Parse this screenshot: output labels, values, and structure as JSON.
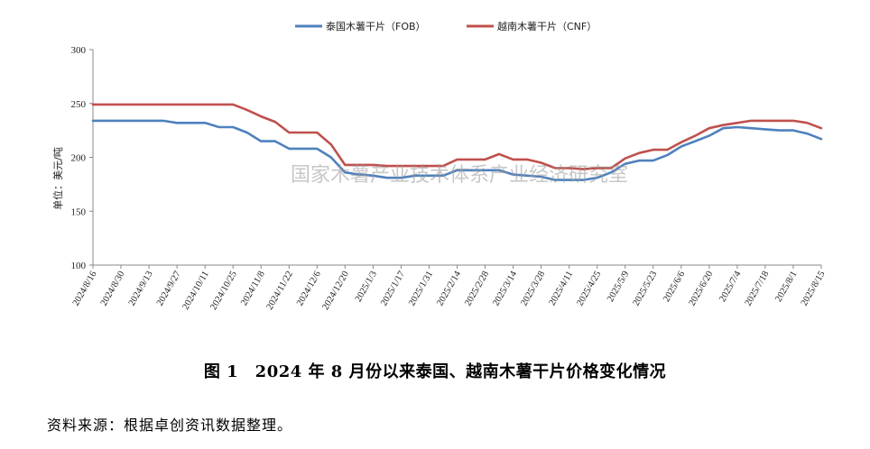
{
  "chart_data": {
    "type": "line",
    "title": "",
    "xlabel": "",
    "ylabel": "单位：美元/吨",
    "ylim": [
      100,
      300
    ],
    "yticks": [
      100,
      150,
      200,
      250,
      300
    ],
    "grid": false,
    "legend_position": "top-center",
    "x_tick_labels": [
      "2024/8/16",
      "2024/8/30",
      "2024/9/13",
      "2024/9/27",
      "2024/10/11",
      "2024/10/25",
      "2024/11/8",
      "2024/11/22",
      "2024/12/6",
      "2024/12/20",
      "2025/1/3",
      "2025/1/17",
      "2025/1/31",
      "2025/2/14",
      "2025/2/28",
      "2025/3/14",
      "2025/3/28",
      "2025/4/11",
      "2025/4/25",
      "2025/5/9",
      "2025/5/23",
      "2025/6/6",
      "2025/6/20",
      "2025/7/4",
      "2025/7/18",
      "2025/8/1",
      "2025/8/15"
    ],
    "series": [
      {
        "name": "泰国木薯干片（FOB）",
        "color": "#4f81bd",
        "values": [
          234,
          234,
          234,
          234,
          234,
          234,
          232,
          232,
          232,
          228,
          228,
          223,
          215,
          215,
          208,
          208,
          208,
          200,
          186,
          184,
          183,
          181,
          181,
          183,
          183,
          183,
          188,
          188,
          188,
          188,
          184,
          183,
          182,
          179,
          179,
          179,
          181,
          186,
          194,
          197,
          197,
          202,
          210,
          215,
          220,
          227,
          228,
          227,
          226,
          225,
          225,
          222,
          217
        ]
      },
      {
        "name": "越南木薯干片（CNF）",
        "color": "#c0504d",
        "values": [
          249,
          249,
          249,
          249,
          249,
          249,
          249,
          249,
          249,
          249,
          249,
          244,
          238,
          233,
          223,
          223,
          223,
          212,
          193,
          193,
          193,
          192,
          192,
          192,
          192,
          192,
          198,
          198,
          198,
          203,
          198,
          198,
          195,
          190,
          190,
          189,
          190,
          190,
          199,
          204,
          207,
          207,
          214,
          220,
          227,
          230,
          232,
          234,
          234,
          234,
          234,
          232,
          227
        ]
      }
    ],
    "watermark": "国家木薯产业技术体系产业经济研究室"
  },
  "caption": "图 1　2024 年 8 月份以来泰国、越南木薯干片价格变化情况",
  "source": "资料来源：根据卓创资讯数据整理。"
}
